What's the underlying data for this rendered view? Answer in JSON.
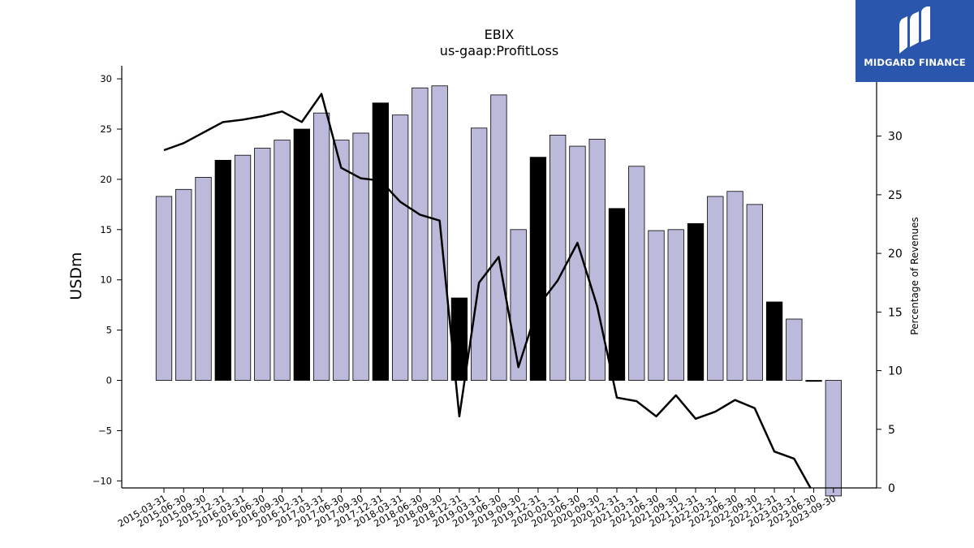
{
  "brand": {
    "name": "MIDGARD FINANCE",
    "icon": "midgard-logo-icon",
    "color": "#2b56ad"
  },
  "chart_data": {
    "type": "bar",
    "title": "EBIX",
    "subtitle": "us-gaap:ProfitLoss",
    "ylabel": "USDm",
    "y2label": "Percentage of Revenues",
    "ylim": [
      -10.7,
      31.3
    ],
    "y2lim": [
      0,
      36
    ],
    "yticks": [
      -10,
      -5,
      0,
      5,
      10,
      15,
      20,
      25,
      30
    ],
    "y2ticks": [
      0,
      5,
      10,
      15,
      20,
      25,
      30
    ],
    "categories": [
      "2015-03-31",
      "2015-06-30",
      "2015-09-30",
      "2015-12-31",
      "2016-03-31",
      "2016-06-30",
      "2016-09-30",
      "2016-12-31",
      "2017-03-31",
      "2017-06-30",
      "2017-09-30",
      "2017-12-31",
      "2018-03-31",
      "2018-06-30",
      "2018-09-30",
      "2018-12-31",
      "2019-03-31",
      "2019-06-30",
      "2019-09-30",
      "2019-12-31",
      "2020-03-31",
      "2020-06-30",
      "2020-09-30",
      "2020-12-31",
      "2021-03-31",
      "2021-06-30",
      "2021-09-30",
      "2021-12-31",
      "2022-03-31",
      "2022-06-30",
      "2022-09-30",
      "2022-12-31",
      "2023-03-31",
      "2023-06-30",
      "2023-09-30"
    ],
    "series": [
      {
        "axis": "left",
        "values": [
          18.3,
          19.0,
          20.2,
          21.9,
          22.4,
          23.1,
          23.9,
          25.0,
          26.6,
          23.9,
          24.6,
          27.6,
          26.4,
          29.1,
          29.3,
          8.2,
          25.1,
          28.4,
          15.0,
          22.2,
          24.4,
          23.3,
          24.0,
          17.1,
          21.3,
          14.9,
          15.0,
          15.6,
          18.3,
          18.8,
          17.5,
          7.8,
          6.1,
          -0.1,
          -11.5
        ],
        "highlight": [
          3,
          7,
          11,
          15,
          19,
          23,
          27,
          31,
          33
        ],
        "colors": {
          "normal": "#bcbadb",
          "highlight": "#000000"
        }
      },
      {
        "axis": "right",
        "type": "line",
        "values": [
          28.8,
          29.4,
          30.3,
          31.2,
          31.4,
          31.7,
          32.1,
          31.2,
          33.6,
          27.3,
          26.4,
          26.2,
          24.4,
          23.3,
          22.8,
          6.1,
          17.5,
          19.7,
          10.3,
          15.5,
          17.7,
          20.9,
          15.5,
          7.7,
          7.4,
          6.1,
          7.9,
          5.9,
          6.5,
          7.5,
          6.8,
          3.1,
          2.5,
          -0.5,
          null
        ],
        "color": "#000000"
      }
    ],
    "grid": false,
    "legend": "none"
  }
}
